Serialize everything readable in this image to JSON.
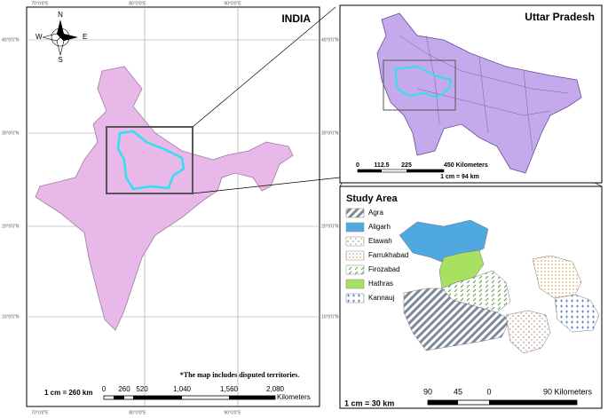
{
  "india": {
    "title": "INDIA",
    "note": "*The map includes disputed territories.",
    "scale_text": "1 cm = 260 km",
    "scale_ticks": [
      "0",
      "260",
      "520",
      "1,040",
      "1,560",
      "2,080"
    ],
    "scale_unit": "Kilometers",
    "lon_labels": [
      "70°0'0\"E",
      "80°0'0\"E",
      "90°0'0\"E"
    ],
    "lat_labels": [
      "40°0'0\"N",
      "30°0'0\"N",
      "20°0'0\"N",
      "10°0'0\"N"
    ]
  },
  "compass": {
    "n": "N",
    "s": "S",
    "e": "E",
    "w": "W"
  },
  "uttar_pradesh": {
    "title": "Uttar Pradesh",
    "scale_ticks": [
      "0",
      "112.5",
      "225",
      "450 Kilometers"
    ],
    "scale_text": "1 cm = 94 km"
  },
  "study_area": {
    "title": "Study Area",
    "legend": [
      "Agra",
      "Aligarh",
      "Etawah",
      "Farrukhabad",
      "Firozabad",
      "Hathras",
      "Kannauj"
    ],
    "scale_ticks": [
      "90",
      "45",
      "0",
      "90 Kilometers"
    ],
    "scale_text": "1 cm = 30 km"
  }
}
